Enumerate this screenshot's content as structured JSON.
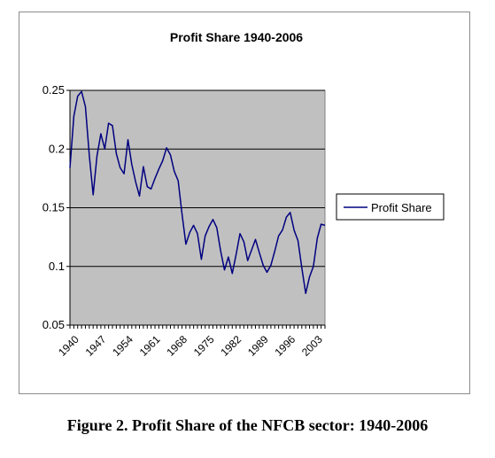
{
  "caption": "Figure 2.  Profit Share of the NFCB sector:  1940-2006",
  "colors": {
    "plot_bg": "#c0c0c0",
    "series": "#000080",
    "grid": "#000000"
  },
  "chart_data": {
    "type": "line",
    "title": "Profit Share 1940-2006",
    "xlabel": "",
    "ylabel": "",
    "ylim": [
      0.05,
      0.25
    ],
    "yticks": [
      "0.05",
      "0.1",
      "0.15",
      "0.2",
      "0.25"
    ],
    "ytick_values": [
      0.05,
      0.1,
      0.15,
      0.2,
      0.25
    ],
    "xtick_labels": [
      "1940",
      "1947",
      "1954",
      "1961",
      "1968",
      "1975",
      "1982",
      "1989",
      "1996",
      "2003"
    ],
    "xtick_values": [
      1940,
      1947,
      1954,
      1961,
      1968,
      1975,
      1982,
      1989,
      1996,
      2003
    ],
    "xlim": [
      1940,
      2006
    ],
    "grid": "horizontal",
    "legend_position": "right",
    "series": [
      {
        "name": "Profit Share",
        "x": [
          1940,
          1941,
          1942,
          1943,
          1944,
          1945,
          1946,
          1947,
          1948,
          1949,
          1950,
          1951,
          1952,
          1953,
          1954,
          1955,
          1956,
          1957,
          1958,
          1959,
          1960,
          1961,
          1962,
          1963,
          1964,
          1965,
          1966,
          1967,
          1968,
          1969,
          1970,
          1971,
          1972,
          1973,
          1974,
          1975,
          1976,
          1977,
          1978,
          1979,
          1980,
          1981,
          1982,
          1983,
          1984,
          1985,
          1986,
          1987,
          1988,
          1989,
          1990,
          1991,
          1992,
          1993,
          1994,
          1995,
          1996,
          1997,
          1998,
          1999,
          2000,
          2001,
          2002,
          2003,
          2004,
          2005,
          2006
        ],
        "values": [
          0.184,
          0.228,
          0.245,
          0.249,
          0.236,
          0.195,
          0.161,
          0.194,
          0.213,
          0.2,
          0.222,
          0.22,
          0.196,
          0.184,
          0.179,
          0.208,
          0.187,
          0.172,
          0.16,
          0.185,
          0.168,
          0.166,
          0.175,
          0.183,
          0.19,
          0.201,
          0.195,
          0.181,
          0.173,
          0.145,
          0.119,
          0.129,
          0.135,
          0.128,
          0.106,
          0.126,
          0.134,
          0.14,
          0.133,
          0.113,
          0.097,
          0.108,
          0.094,
          0.11,
          0.128,
          0.121,
          0.105,
          0.114,
          0.123,
          0.112,
          0.101,
          0.095,
          0.101,
          0.113,
          0.126,
          0.131,
          0.142,
          0.146,
          0.131,
          0.122,
          0.099,
          0.077,
          0.091,
          0.1,
          0.124,
          0.136,
          0.135
        ]
      }
    ]
  }
}
